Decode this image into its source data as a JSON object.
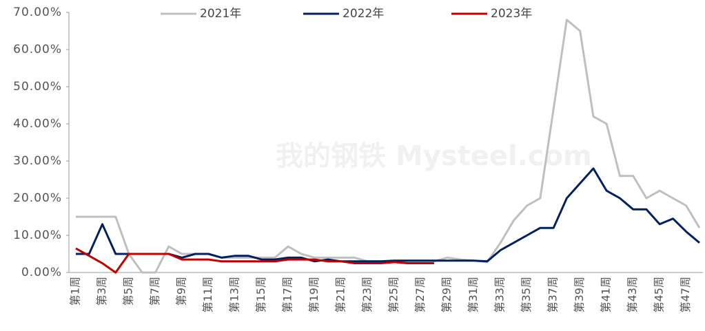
{
  "chart_data": {
    "type": "line",
    "watermark": "我的钢铁 Mysteel.com",
    "categories": [
      "第1周",
      null,
      "第3周",
      null,
      "第5周",
      null,
      "第7周",
      null,
      "第9周",
      null,
      "第11周",
      null,
      "第13周",
      null,
      "第15周",
      null,
      "第17周",
      null,
      "第19周",
      null,
      "第21周",
      null,
      "第23周",
      null,
      "第25周",
      null,
      "第27周",
      null,
      "第29周",
      null,
      "第31周",
      null,
      "第33周",
      null,
      "第35周",
      null,
      "第37周",
      null,
      "第39周",
      null,
      "第41周",
      null,
      "第43周",
      null,
      "第45周",
      null,
      "第47周",
      null
    ],
    "series": [
      {
        "name": "2021年",
        "color": "#bfbfbf",
        "values": [
          15,
          15,
          15,
          15,
          5,
          0,
          0,
          7,
          5,
          5,
          5,
          4,
          4,
          4,
          4,
          4,
          7,
          5,
          4,
          4,
          4,
          4,
          3,
          3,
          3,
          3,
          3,
          3,
          4,
          3.5,
          3.2,
          2.8,
          8,
          14,
          18,
          20,
          44,
          68,
          65,
          42,
          40,
          26,
          26,
          20,
          22,
          20,
          18,
          12
        ]
      },
      {
        "name": "2022年",
        "color": "#002060",
        "values": [
          5,
          5,
          13,
          5,
          5,
          5,
          5,
          5,
          4,
          5,
          5,
          4,
          4.5,
          4.5,
          3.5,
          3.5,
          4,
          4,
          3,
          3.5,
          3,
          3,
          3,
          3,
          3.2,
          3.2,
          3.2,
          3.2,
          3.2,
          3.2,
          3.2,
          3,
          6,
          8,
          10,
          12,
          12,
          20,
          24,
          28,
          22,
          20,
          17,
          17,
          13,
          14.5,
          11,
          8
        ]
      },
      {
        "name": "2023年",
        "color": "#c00000",
        "values": [
          6.5,
          4.5,
          2.5,
          0,
          5,
          5,
          5,
          5,
          3.5,
          3.5,
          3.5,
          3,
          3,
          3,
          3,
          3,
          3.5,
          3.5,
          3.5,
          3,
          3,
          2.5,
          2.5,
          2.5,
          2.8,
          2.5,
          2.5,
          2.5,
          null,
          null,
          null,
          null,
          null,
          null,
          null,
          null,
          null,
          null,
          null,
          null,
          null,
          null,
          null,
          null,
          null,
          null,
          null,
          null
        ]
      }
    ],
    "ylim": [
      0,
      70
    ],
    "yticks": [
      {
        "value": 0,
        "label": "0.00%"
      },
      {
        "value": 10,
        "label": "10.00%"
      },
      {
        "value": 20,
        "label": "20.00%"
      },
      {
        "value": 30,
        "label": "30.00%"
      },
      {
        "value": 40,
        "label": "40.00%"
      },
      {
        "value": 50,
        "label": "50.00%"
      },
      {
        "value": 60,
        "label": "60.00%"
      },
      {
        "value": 70,
        "label": "70.00%"
      }
    ],
    "legend": "top"
  }
}
